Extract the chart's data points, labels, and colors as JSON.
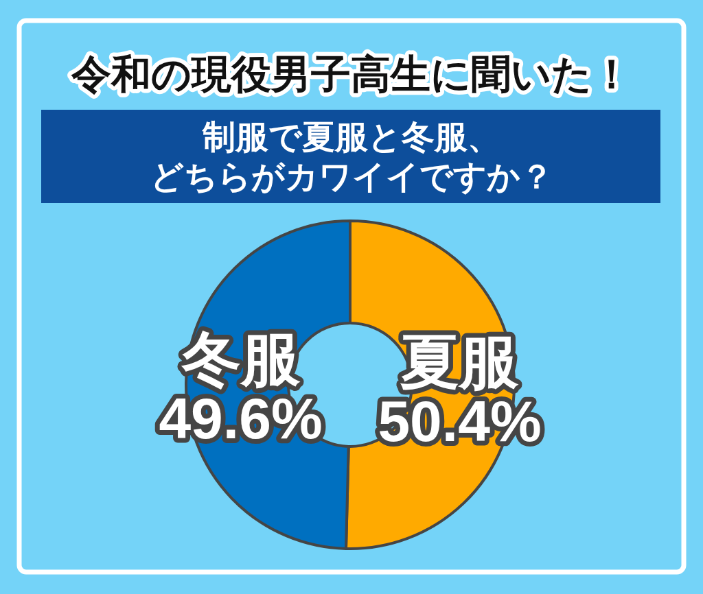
{
  "chart_data": {
    "type": "donut",
    "title": "令和の現役男子高生に聞いた！",
    "subtitle": "制服で夏服と冬服、どちらがカワイイですか？",
    "categories": [
      "夏服",
      "冬服"
    ],
    "values": [
      50.4,
      49.6
    ],
    "colors": [
      "#ffaa00",
      "#0070c0"
    ],
    "value_labels": [
      "50.4%",
      "49.6%"
    ]
  }
}
